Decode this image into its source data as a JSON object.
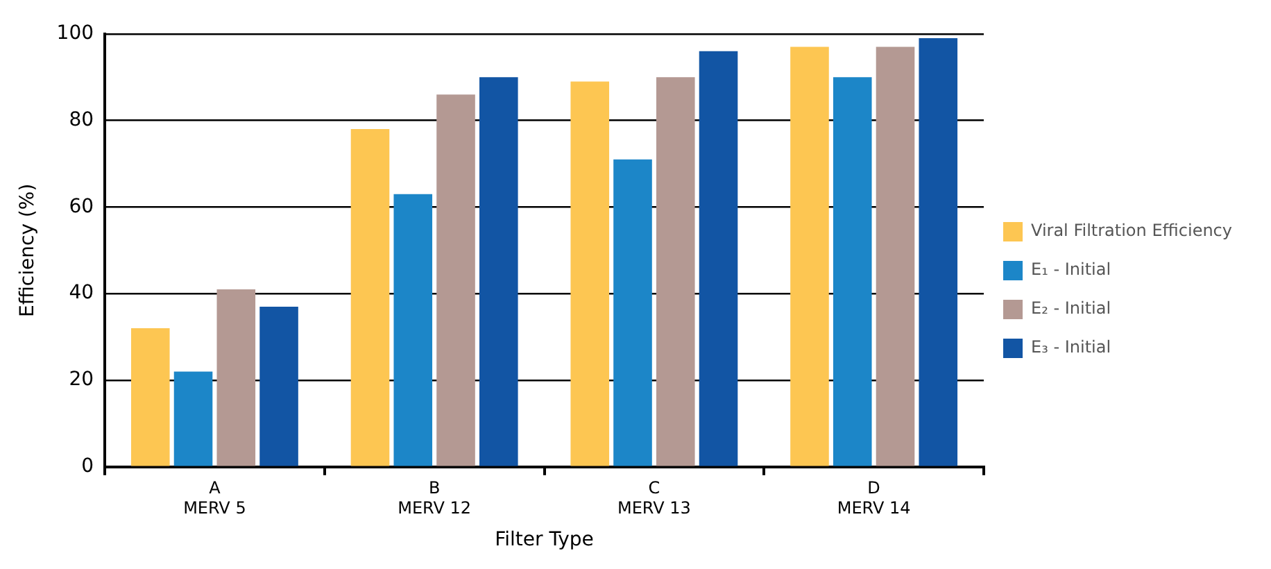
{
  "chart_data": {
    "type": "bar",
    "xlabel": "Filter Type",
    "ylabel": "Efficiency (%)",
    "categories": [
      "A\nMERV 5",
      "B\nMERV 12",
      "C\nMERV 13",
      "D\nMERV 14"
    ],
    "series": [
      {
        "name": "Viral Filtration Efficiency",
        "color": "#fdc652",
        "values": [
          32,
          78,
          89,
          97
        ]
      },
      {
        "name": "E₁ - Initial",
        "color": "#1c86c8",
        "values": [
          22,
          63,
          71,
          90
        ]
      },
      {
        "name": "E₂ - Initial",
        "color": "#b49993",
        "values": [
          41,
          86,
          90,
          97
        ]
      },
      {
        "name": "E₃ - Initial",
        "color": "#1255a4",
        "values": [
          37,
          90,
          96,
          99
        ]
      }
    ],
    "ylim": [
      0,
      100
    ],
    "yticks": [
      0,
      20,
      40,
      60,
      80,
      100
    ],
    "grid": "y",
    "legend": "right"
  }
}
